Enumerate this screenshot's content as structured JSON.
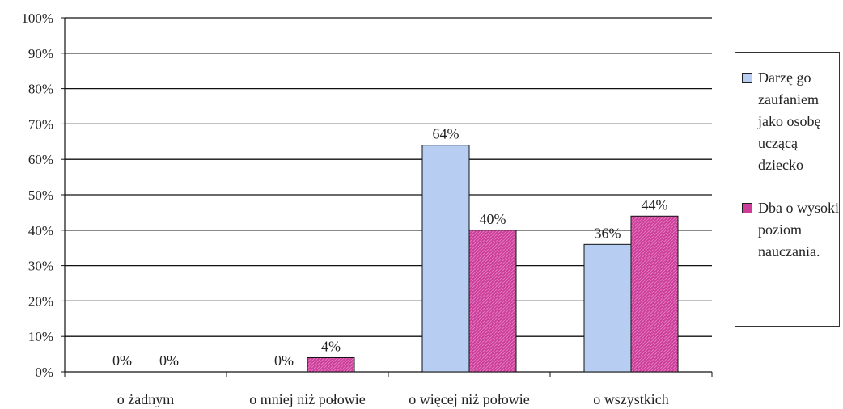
{
  "chart_data": {
    "type": "bar",
    "categories": [
      "o żadnym",
      "o mniej niż połowie",
      "o więcej niż połowie",
      "o wszystkich"
    ],
    "series": [
      {
        "name": "Darzę go zaufaniem jako osobę uczącą dziecko",
        "values": [
          0,
          0,
          64,
          36
        ],
        "color": "#b7cdf2",
        "labels": [
          "0%",
          "0%",
          "64%",
          "36%"
        ]
      },
      {
        "name": "Dba o wysoki poziom nauczania.",
        "values": [
          0,
          4,
          40,
          44
        ],
        "color": "#cc3d99",
        "labels": [
          "0%",
          "4%",
          "40%",
          "44%"
        ]
      }
    ],
    "yticks": [
      "0%",
      "10%",
      "20%",
      "30%",
      "40%",
      "50%",
      "60%",
      "70%",
      "80%",
      "90%",
      "100%"
    ],
    "ylim": [
      0,
      100
    ],
    "grid": true,
    "legend_position": "right"
  }
}
